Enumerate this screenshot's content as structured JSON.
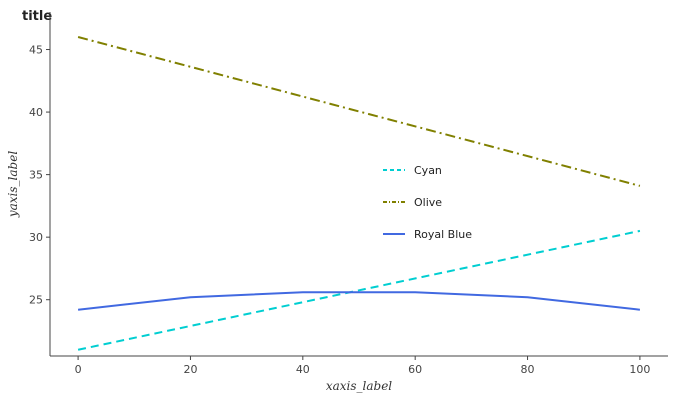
{
  "chart_data": {
    "type": "line",
    "title": "title",
    "xlabel": "xaxis_label",
    "ylabel": "yaxis_label",
    "xlim": [
      -5,
      105
    ],
    "ylim": [
      20.5,
      48
    ],
    "x_ticks": [
      0,
      20,
      40,
      60,
      80,
      100
    ],
    "y_ticks": [
      25,
      30,
      35,
      40,
      45
    ],
    "grid": false,
    "legend_position": "center-right",
    "series": [
      {
        "name": "Cyan",
        "color": "#00ced1",
        "dash": "dashed",
        "x": [
          0,
          100
        ],
        "y": [
          21,
          30.5
        ]
      },
      {
        "name": "Olive",
        "color": "#808000",
        "dash": "dashdot",
        "x": [
          0,
          100
        ],
        "y": [
          46,
          34.1
        ]
      },
      {
        "name": "Royal Blue",
        "color": "#4169e1",
        "dash": "solid",
        "x": [
          0,
          20,
          40,
          60,
          80,
          100
        ],
        "y": [
          24.2,
          25.2,
          25.6,
          25.6,
          25.2,
          24.2
        ]
      }
    ]
  }
}
